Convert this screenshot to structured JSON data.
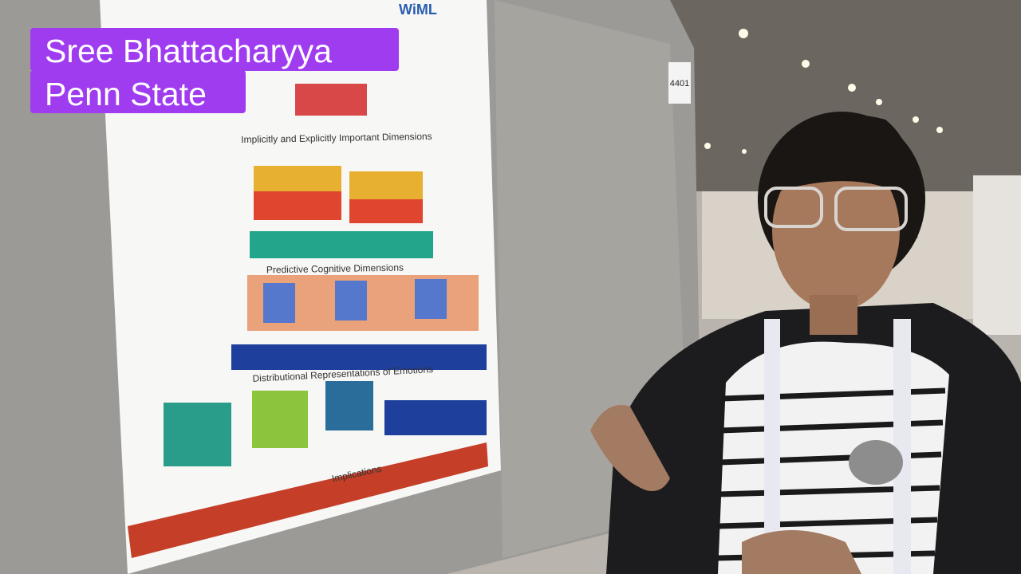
{
  "caption": {
    "name": "Sree Bhattacharyya",
    "affiliation": "Penn State"
  },
  "poster": {
    "logo": "WiML",
    "board_number": "4401",
    "sections": [
      "Implicitly and Explicitly Important Dimensions",
      "Predictive Cognitive Dimensions",
      "Distributional Representations of Emotions",
      "Implications"
    ]
  }
}
